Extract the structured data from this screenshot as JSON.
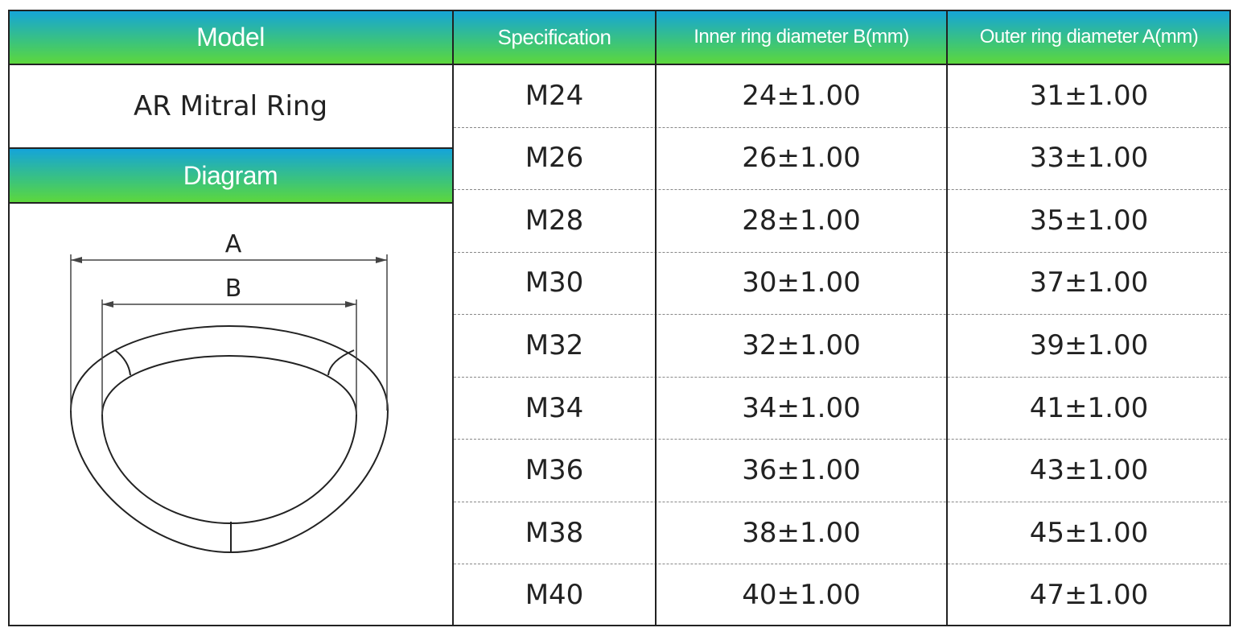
{
  "left": {
    "model_header": "Model",
    "model": "AR Mitral Ring",
    "diagram_header": "Diagram",
    "diagram_labels": [
      "A",
      "B"
    ]
  },
  "table": {
    "headers": [
      "Specification",
      "Inner ring diameter B(mm)",
      "Outer ring diameter A(mm)"
    ],
    "rows": [
      [
        "M24",
        "24±1.00",
        "31±1.00"
      ],
      [
        "M26",
        "26±1.00",
        "33±1.00"
      ],
      [
        "M28",
        "28±1.00",
        "35±1.00"
      ],
      [
        "M30",
        "30±1.00",
        "37±1.00"
      ],
      [
        "M32",
        "32±1.00",
        "39±1.00"
      ],
      [
        "M34",
        "34±1.00",
        "41±1.00"
      ],
      [
        "M36",
        "36±1.00",
        "43±1.00"
      ],
      [
        "M38",
        "38±1.00",
        "45±1.00"
      ],
      [
        "M40",
        "40±1.00",
        "47±1.00"
      ]
    ]
  }
}
